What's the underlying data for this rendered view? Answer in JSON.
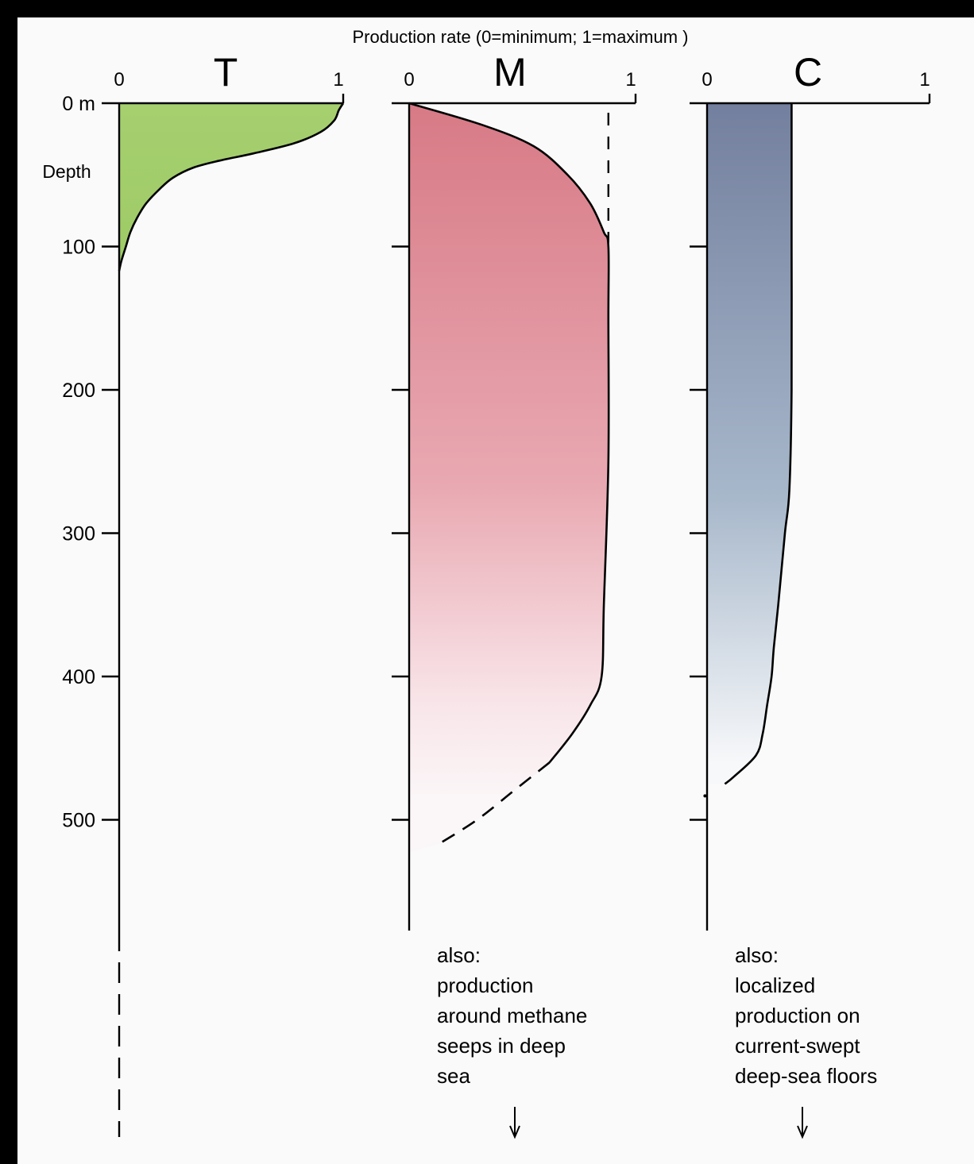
{
  "chart_data": {
    "type": "area",
    "title": "Production rate (0=minimum; 1=maximum )",
    "ylabel": "Depth",
    "yaxis_ticks": [
      "0 m",
      "100",
      "200",
      "300",
      "400",
      "500"
    ],
    "yaxis_tick_values": [
      0,
      100,
      200,
      300,
      400,
      500
    ],
    "ylim": [
      0,
      570
    ],
    "y_inverted": true,
    "xlim": [
      0,
      1
    ],
    "panels": [
      {
        "name": "T",
        "tick_labels": [
          "0",
          "1"
        ],
        "fill_color": "#a6cf6f",
        "profile": [
          [
            0,
            1.0
          ],
          [
            5,
            0.98
          ],
          [
            12,
            0.96
          ],
          [
            20,
            0.9
          ],
          [
            28,
            0.78
          ],
          [
            35,
            0.6
          ],
          [
            40,
            0.45
          ],
          [
            45,
            0.33
          ],
          [
            52,
            0.24
          ],
          [
            60,
            0.18
          ],
          [
            70,
            0.12
          ],
          [
            80,
            0.08
          ],
          [
            90,
            0.05
          ],
          [
            100,
            0.03
          ],
          [
            110,
            0.01
          ],
          [
            117,
            0
          ]
        ],
        "annotation": ""
      },
      {
        "name": "M",
        "tick_labels": [
          "0",
          "1"
        ],
        "fill_color": "#d9808c",
        "profile": [
          [
            0,
            0
          ],
          [
            15,
            0.32
          ],
          [
            30,
            0.55
          ],
          [
            50,
            0.7
          ],
          [
            70,
            0.8
          ],
          [
            90,
            0.86
          ],
          [
            100,
            0.88
          ],
          [
            150,
            0.88
          ],
          [
            250,
            0.88
          ],
          [
            350,
            0.86
          ],
          [
            400,
            0.85
          ],
          [
            420,
            0.8
          ],
          [
            440,
            0.72
          ],
          [
            460,
            0.62
          ],
          [
            480,
            0.46
          ],
          [
            500,
            0.3
          ],
          [
            517,
            0.13
          ]
        ],
        "profile_dashed_from": 460,
        "max_line": 0.88,
        "annotation": "also:\nproduction\naround methane\nseeps in deep\nsea"
      },
      {
        "name": "C",
        "tick_labels": [
          "0",
          "1"
        ],
        "fill_color": "#8090b0",
        "profile": [
          [
            0,
            0.38
          ],
          [
            100,
            0.38
          ],
          [
            200,
            0.38
          ],
          [
            270,
            0.37
          ],
          [
            300,
            0.35
          ],
          [
            350,
            0.32
          ],
          [
            380,
            0.3
          ],
          [
            400,
            0.29
          ],
          [
            420,
            0.27
          ],
          [
            440,
            0.25
          ],
          [
            455,
            0.22
          ],
          [
            470,
            0.12
          ],
          [
            475,
            0.08
          ]
        ],
        "annotation": "also:\nlocalized\nproduction on\ncurrent-swept\ndeep-sea floors"
      }
    ]
  }
}
